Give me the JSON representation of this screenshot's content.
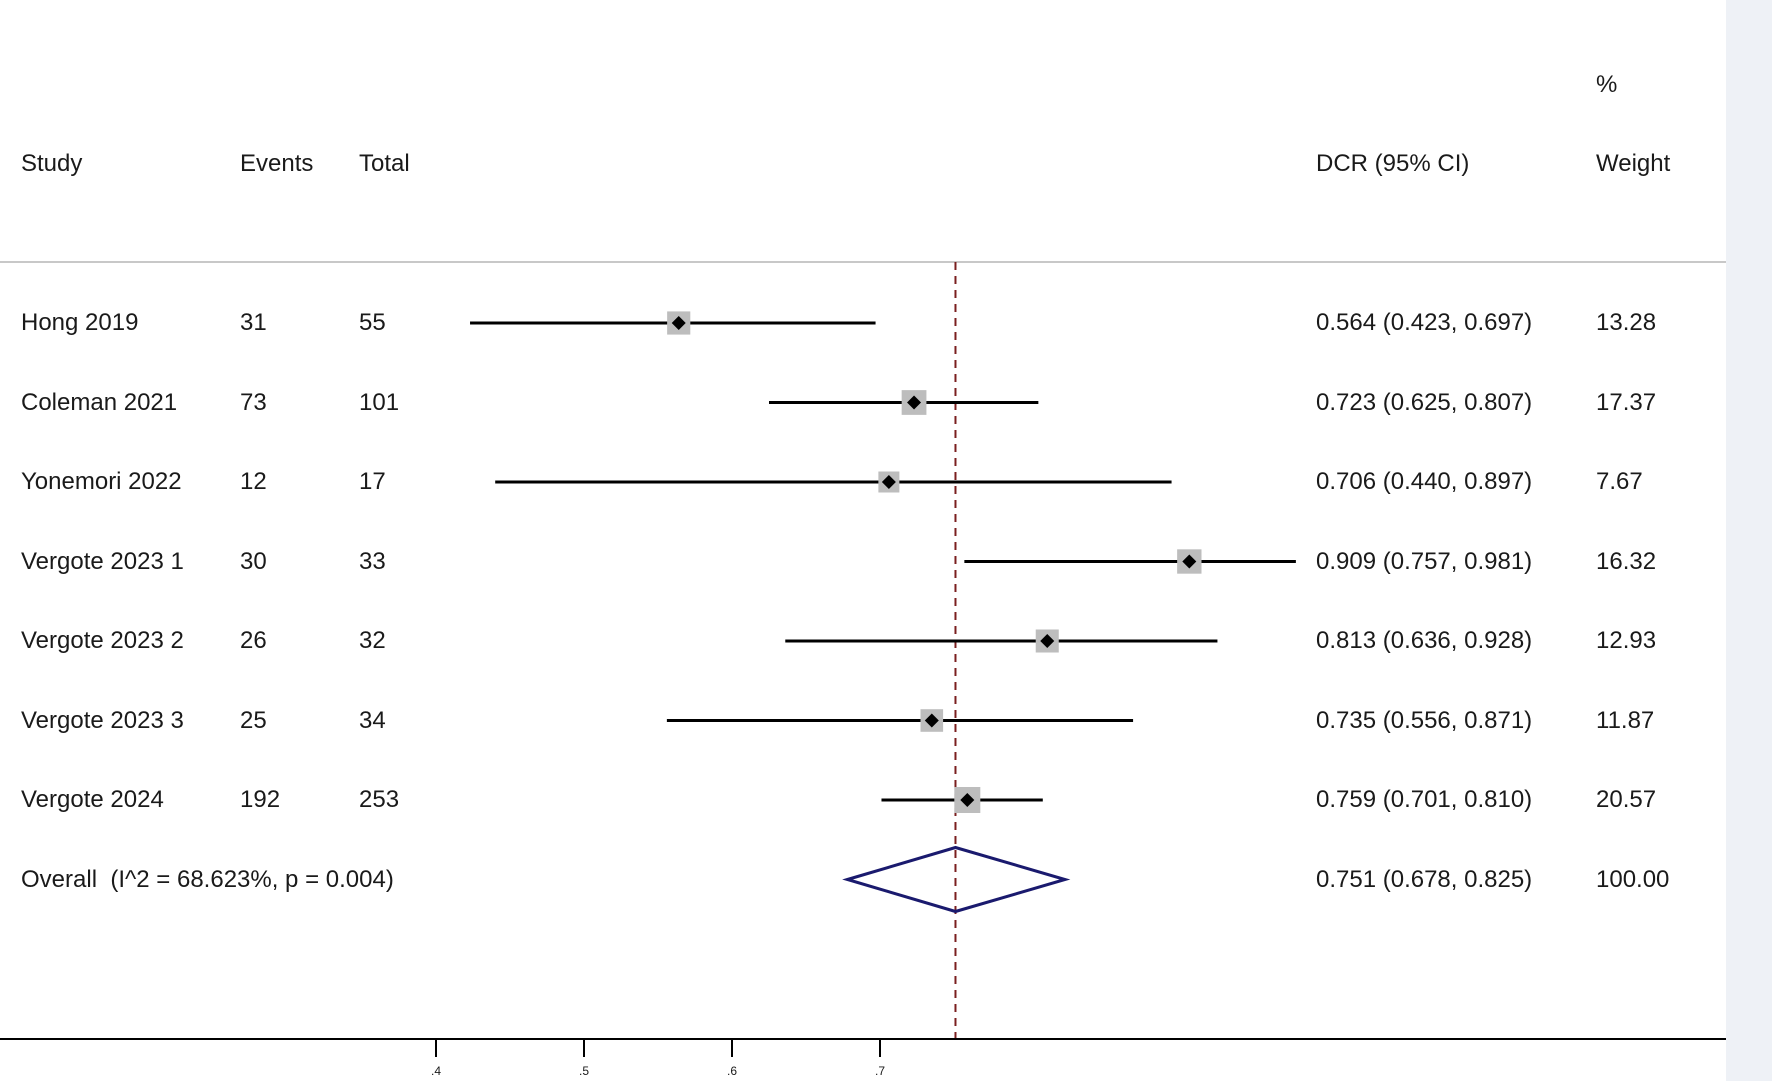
{
  "headers": {
    "study": "Study",
    "events": "Events",
    "total": "Total",
    "estimate": "DCR (95% CI)",
    "weight_top": "%",
    "weight_bottom": "Weight"
  },
  "chart_data": {
    "type": "forest",
    "title": "",
    "xlabel": "",
    "xlim": [
      0.37,
      1.0
    ],
    "x_ticks": [
      0.4,
      0.5,
      0.6,
      0.7
    ],
    "x_tick_labels": [
      ".4",
      ".5",
      ".6",
      ".7"
    ],
    "reference_line": 0.751,
    "studies": [
      {
        "name": "Hong 2019",
        "events": "31",
        "total": "55",
        "est": 0.564,
        "lo": 0.423,
        "hi": 0.697,
        "ci_text": "0.564 (0.423, 0.697)",
        "weight": 13.28,
        "weight_text": "13.28"
      },
      {
        "name": "Coleman 2021",
        "events": "73",
        "total": "101",
        "est": 0.723,
        "lo": 0.625,
        "hi": 0.807,
        "ci_text": "0.723 (0.625, 0.807)",
        "weight": 17.37,
        "weight_text": "17.37"
      },
      {
        "name": "Yonemori 2022",
        "events": "12",
        "total": "17",
        "est": 0.706,
        "lo": 0.44,
        "hi": 0.897,
        "ci_text": "0.706 (0.440, 0.897)",
        "weight": 7.67,
        "weight_text": "7.67"
      },
      {
        "name": "Vergote 2023 1",
        "events": "30",
        "total": "33",
        "est": 0.909,
        "lo": 0.757,
        "hi": 0.981,
        "ci_text": "0.909 (0.757, 0.981)",
        "weight": 16.32,
        "weight_text": "16.32"
      },
      {
        "name": "Vergote 2023 2",
        "events": "26",
        "total": "32",
        "est": 0.813,
        "lo": 0.636,
        "hi": 0.928,
        "ci_text": "0.813 (0.636, 0.928)",
        "weight": 12.93,
        "weight_text": "12.93"
      },
      {
        "name": "Vergote 2023 3",
        "events": "25",
        "total": "34",
        "est": 0.735,
        "lo": 0.556,
        "hi": 0.871,
        "ci_text": "0.735 (0.556, 0.871)",
        "weight": 11.87,
        "weight_text": "11.87"
      },
      {
        "name": "Vergote 2024",
        "events": "192",
        "total": "253",
        "est": 0.759,
        "lo": 0.701,
        "hi": 0.81,
        "ci_text": "0.759 (0.701, 0.810)",
        "weight": 20.57,
        "weight_text": "20.57"
      }
    ],
    "overall": {
      "label": "Overall  (I^2 = 68.623%, p = 0.004)",
      "est": 0.751,
      "lo": 0.678,
      "hi": 0.825,
      "ci_text": "0.751 (0.678, 0.825)",
      "weight_text": "100.00"
    },
    "colors": {
      "ci_line": "#000000",
      "weight_box": "#bdbdbd",
      "point": "#000000",
      "diamond": "#1a1a6e",
      "reference_line": "#7a1f1f",
      "separator": "#c8c8c8",
      "axis": "#000000"
    }
  }
}
